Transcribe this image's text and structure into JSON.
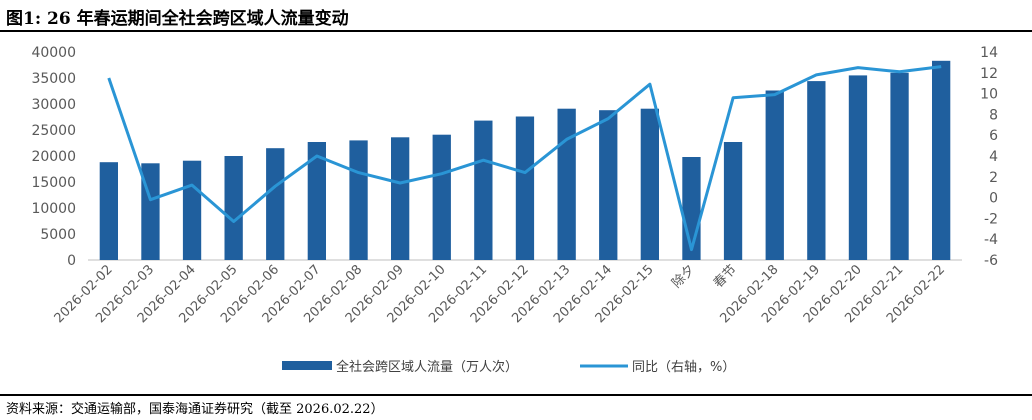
{
  "figure": {
    "title": "图1:  26 年春运期间全社会跨区域人流量变动",
    "source": "资料来源：交通运输部，国泰海通证券研究（截至 2026.02.22）"
  },
  "colors": {
    "bar": "#1f5f9e",
    "line": "#2a95d5",
    "axis": "#bfbfbf",
    "text": "#595959"
  },
  "chart_data": {
    "type": "bar",
    "categories": [
      "2026-02-02",
      "2026-02-03",
      "2026-02-04",
      "2026-02-05",
      "2026-02-06",
      "2026-02-07",
      "2026-02-08",
      "2026-02-09",
      "2026-02-10",
      "2026-02-11",
      "2026-02-12",
      "2026-02-13",
      "2026-02-14",
      "2026-02-15",
      "除夕",
      "春节",
      "2026-02-18",
      "2026-02-19",
      "2026-02-20",
      "2026-02-21",
      "2026-02-22"
    ],
    "series": [
      {
        "name": "全社会跨区域人流量（万人次）",
        "type": "bar",
        "axis": "left",
        "values": [
          18800,
          18600,
          19100,
          20000,
          21500,
          22700,
          23000,
          23600,
          24100,
          26800,
          27600,
          29100,
          28800,
          29100,
          19800,
          22700,
          32600,
          34400,
          35500,
          36000,
          38300
        ]
      },
      {
        "name": "同比（右轴，%）",
        "type": "line",
        "axis": "right",
        "values": [
          11.5,
          -0.2,
          1.2,
          -2.3,
          1.1,
          4.0,
          2.4,
          1.4,
          2.3,
          3.6,
          2.4,
          5.6,
          7.6,
          10.9,
          -5.0,
          9.6,
          9.9,
          11.8,
          12.5,
          12.1,
          12.6
        ]
      }
    ],
    "y_left": {
      "lim": [
        0,
        40000
      ],
      "ticks": [
        "0",
        "5000",
        "10000",
        "15000",
        "20000",
        "25000",
        "30000",
        "35000",
        "40000"
      ]
    },
    "y_right": {
      "lim": [
        -6,
        14
      ],
      "ticks": [
        "-6",
        "-4",
        "-2",
        "0",
        "2",
        "4",
        "6",
        "8",
        "10",
        "12",
        "14"
      ]
    },
    "grid": false,
    "legend": "bottom"
  }
}
